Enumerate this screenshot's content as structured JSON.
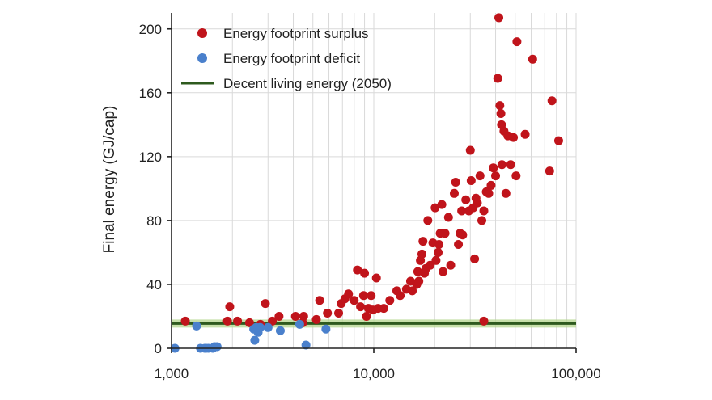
{
  "chart_data": {
    "type": "scatter",
    "xlabel": "",
    "ylabel": "Final energy (GJ/cap)",
    "x_scale": "log",
    "xlim": [
      1000,
      100000
    ],
    "ylim": [
      0,
      210
    ],
    "x_ticks": [
      1000,
      10000,
      100000
    ],
    "x_tick_labels": [
      "1,000",
      "10,000",
      "100,000"
    ],
    "y_ticks": [
      0,
      40,
      80,
      120,
      160,
      200
    ],
    "y_tick_labels": [
      "0",
      "40",
      "80",
      "120",
      "160",
      "200"
    ],
    "grid": true,
    "legend_position": "top-left",
    "colors": {
      "surplus": "#c0141b",
      "deficit": "#4a80cc",
      "line": "#2e5a1e",
      "band": "#b4d68e"
    },
    "series": [
      {
        "name": "Energy footprint surplus",
        "points": [
          [
            1170,
            17
          ],
          [
            1890,
            17
          ],
          [
            1940,
            26
          ],
          [
            2120,
            17
          ],
          [
            2430,
            16
          ],
          [
            2750,
            15
          ],
          [
            2910,
            28
          ],
          [
            3150,
            17
          ],
          [
            3400,
            20
          ],
          [
            4100,
            20
          ],
          [
            4450,
            16
          ],
          [
            4500,
            20
          ],
          [
            5200,
            18
          ],
          [
            5400,
            30
          ],
          [
            5900,
            22
          ],
          [
            6700,
            22
          ],
          [
            6900,
            28
          ],
          [
            7200,
            31
          ],
          [
            7500,
            34
          ],
          [
            8000,
            30
          ],
          [
            8300,
            49
          ],
          [
            8600,
            26
          ],
          [
            8900,
            33
          ],
          [
            9000,
            47
          ],
          [
            9200,
            20
          ],
          [
            9400,
            25
          ],
          [
            9700,
            33
          ],
          [
            9900,
            24
          ],
          [
            10300,
            44
          ],
          [
            10500,
            25
          ],
          [
            11200,
            25
          ],
          [
            12000,
            30
          ],
          [
            13000,
            36
          ],
          [
            13500,
            33
          ],
          [
            14500,
            37
          ],
          [
            15200,
            42
          ],
          [
            15500,
            36
          ],
          [
            16300,
            40
          ],
          [
            16700,
            42
          ],
          [
            16500,
            48
          ],
          [
            17000,
            55
          ],
          [
            17300,
            59
          ],
          [
            17500,
            67
          ],
          [
            17800,
            47
          ],
          [
            18100,
            50
          ],
          [
            18500,
            80
          ],
          [
            19000,
            52
          ],
          [
            19600,
            66
          ],
          [
            20100,
            88
          ],
          [
            20300,
            55
          ],
          [
            20800,
            60
          ],
          [
            21000,
            65
          ],
          [
            21300,
            72
          ],
          [
            21700,
            90
          ],
          [
            22000,
            48
          ],
          [
            22500,
            72
          ],
          [
            23400,
            82
          ],
          [
            24000,
            52
          ],
          [
            25000,
            97
          ],
          [
            25400,
            104
          ],
          [
            26200,
            65
          ],
          [
            26700,
            72
          ],
          [
            27200,
            86
          ],
          [
            27500,
            71
          ],
          [
            28500,
            93
          ],
          [
            29500,
            86
          ],
          [
            30000,
            124
          ],
          [
            30300,
            105
          ],
          [
            31000,
            88
          ],
          [
            31500,
            56
          ],
          [
            32000,
            94
          ],
          [
            32500,
            91
          ],
          [
            33500,
            108
          ],
          [
            34200,
            80
          ],
          [
            35000,
            86
          ],
          [
            36000,
            98
          ],
          [
            37000,
            97
          ],
          [
            38000,
            102
          ],
          [
            39000,
            113
          ],
          [
            40000,
            108
          ],
          [
            41000,
            169
          ],
          [
            41500,
            207
          ],
          [
            42000,
            152
          ],
          [
            42500,
            147
          ],
          [
            42800,
            140
          ],
          [
            43000,
            115
          ],
          [
            44000,
            136
          ],
          [
            45000,
            97
          ],
          [
            46000,
            133
          ],
          [
            47500,
            115
          ],
          [
            49000,
            132
          ],
          [
            50500,
            108
          ],
          [
            51000,
            192
          ],
          [
            56000,
            134
          ],
          [
            61000,
            181
          ],
          [
            74000,
            111
          ],
          [
            76000,
            155
          ],
          [
            82000,
            130
          ],
          [
            35000,
            17
          ]
        ]
      },
      {
        "name": "Energy footprint deficit",
        "points": [
          [
            1040,
            0
          ],
          [
            1330,
            14
          ],
          [
            1390,
            0
          ],
          [
            1460,
            0
          ],
          [
            1480,
            0
          ],
          [
            1520,
            0
          ],
          [
            1600,
            0
          ],
          [
            1630,
            1
          ],
          [
            1680,
            1
          ],
          [
            2550,
            12
          ],
          [
            2580,
            5
          ],
          [
            2620,
            13
          ],
          [
            2680,
            10
          ],
          [
            2740,
            13
          ],
          [
            3000,
            13
          ],
          [
            3450,
            11
          ],
          [
            4300,
            15
          ],
          [
            4620,
            2
          ],
          [
            5800,
            12
          ]
        ]
      }
    ],
    "reference_line": {
      "name": "Decent living energy (2050)",
      "y": 15.5
    }
  }
}
